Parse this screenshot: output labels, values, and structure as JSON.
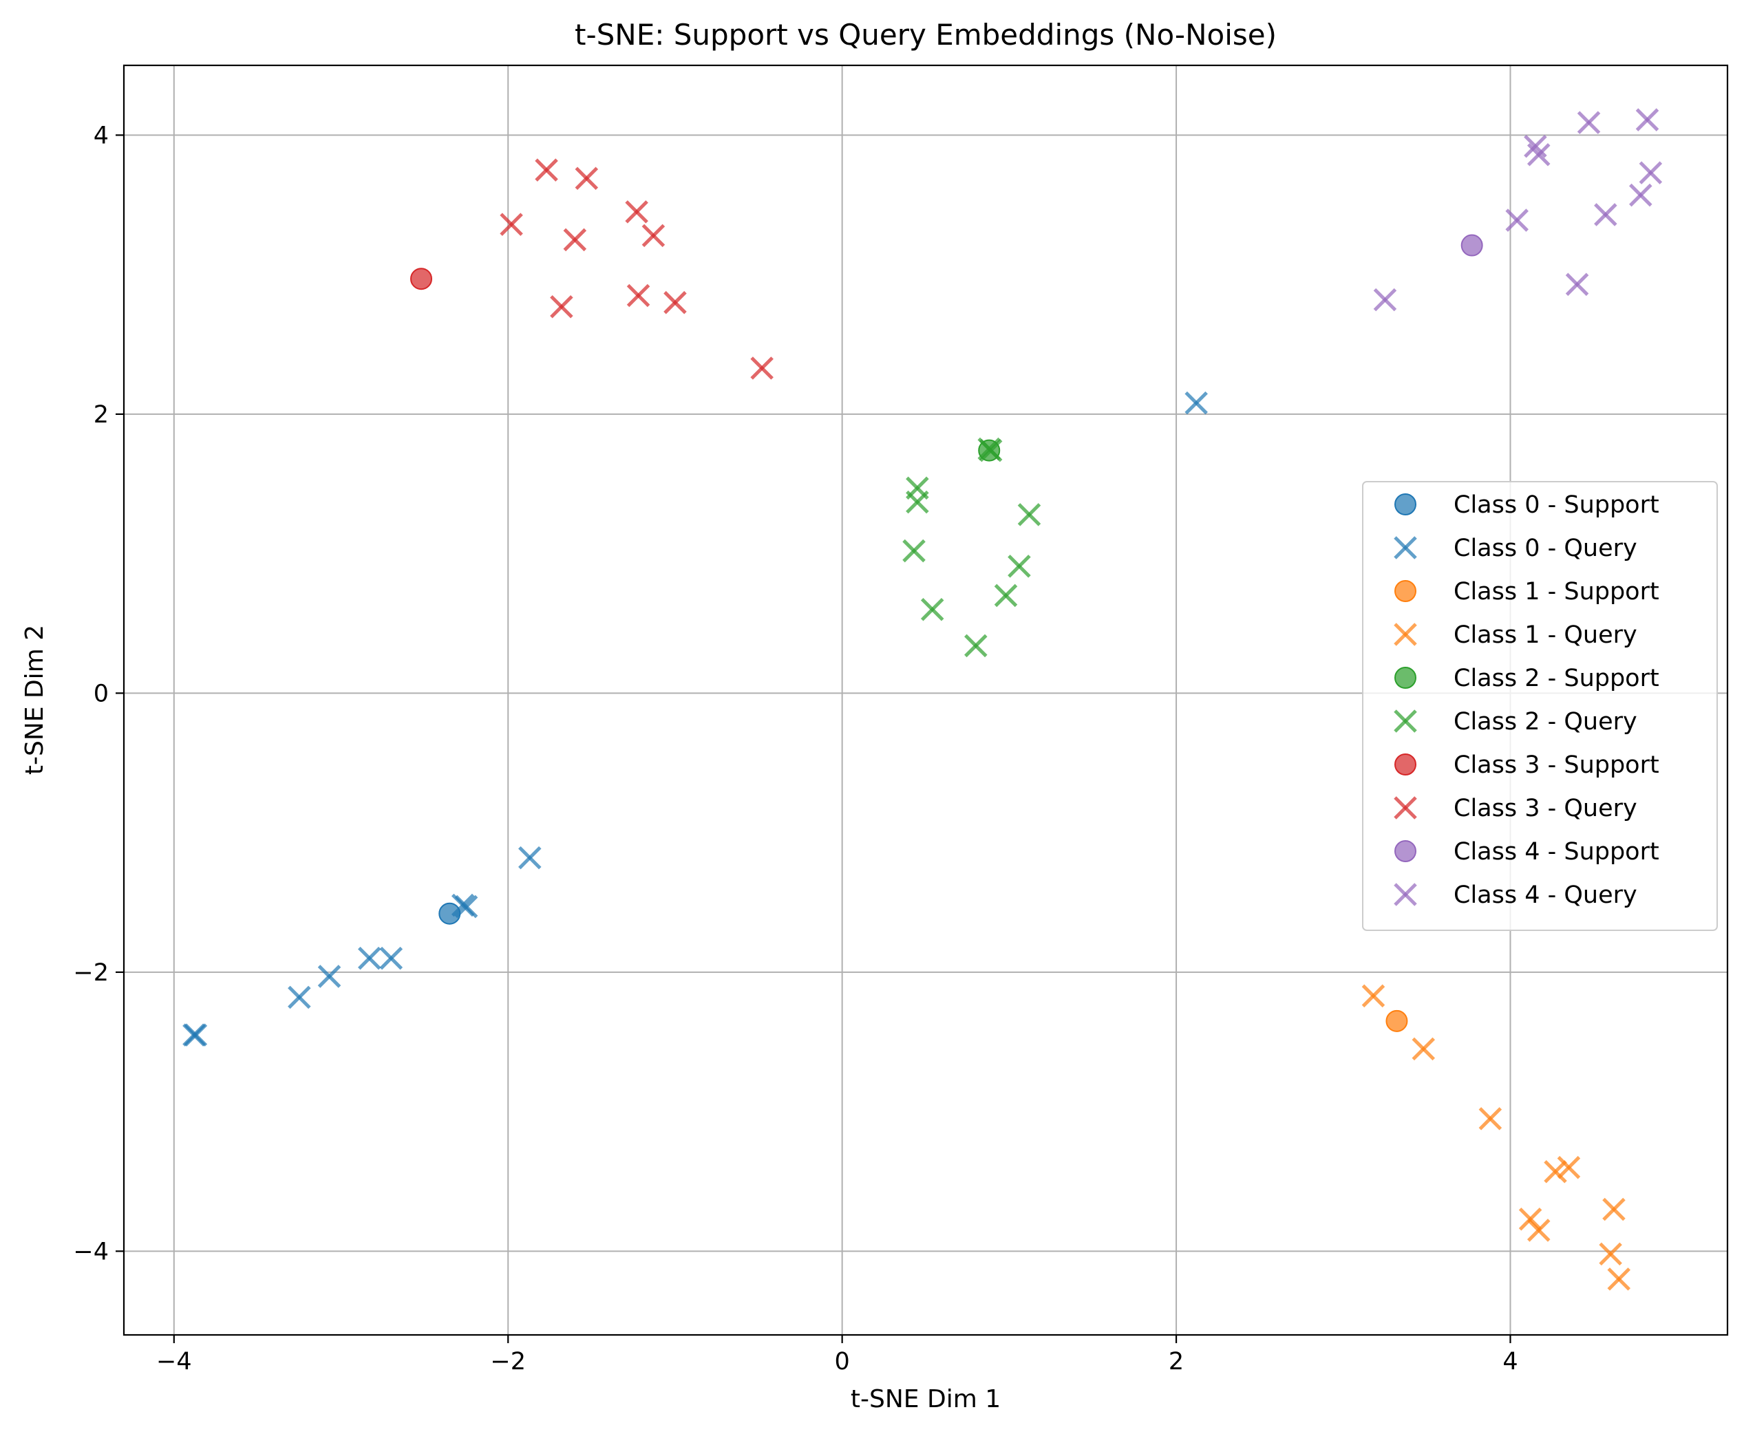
{
  "chart_data": {
    "type": "scatter",
    "title": "t-SNE: Support vs Query Embeddings (No-Noise)",
    "xlabel": "t-SNE Dim 1",
    "ylabel": "t-SNE Dim 2",
    "xlim": [
      -4.3,
      5.3
    ],
    "ylim": [
      -4.6,
      4.5
    ],
    "xticks": [
      -4,
      -2,
      0,
      2,
      4
    ],
    "yticks": [
      -4,
      -2,
      0,
      2,
      4
    ],
    "xtick_labels": [
      "−4",
      "−2",
      "0",
      "2",
      "4"
    ],
    "ytick_labels": [
      "−4",
      "−2",
      "0",
      "2",
      "4"
    ],
    "grid": true,
    "legend_position": "center-right",
    "series": [
      {
        "name": "Class 0 - Support",
        "marker": "circle",
        "color": "#1f77b4",
        "points": [
          [
            -2.35,
            -1.58
          ]
        ]
      },
      {
        "name": "Class 0 - Query",
        "marker": "x",
        "color": "#1f77b4",
        "points": [
          [
            -3.88,
            -2.45
          ],
          [
            -3.87,
            -2.45
          ],
          [
            -3.25,
            -2.18
          ],
          [
            -3.07,
            -2.03
          ],
          [
            -2.83,
            -1.9
          ],
          [
            -2.7,
            -1.9
          ],
          [
            -2.27,
            -1.52
          ],
          [
            -2.25,
            -1.53
          ],
          [
            -1.87,
            -1.18
          ],
          [
            2.12,
            2.08
          ]
        ]
      },
      {
        "name": "Class 1 - Support",
        "marker": "circle",
        "color": "#ff7f0e",
        "points": [
          [
            3.32,
            -2.35
          ]
        ]
      },
      {
        "name": "Class 1 - Query",
        "marker": "x",
        "color": "#ff7f0e",
        "points": [
          [
            3.18,
            -2.17
          ],
          [
            3.48,
            -2.55
          ],
          [
            3.88,
            -3.05
          ],
          [
            4.27,
            -3.43
          ],
          [
            4.35,
            -3.4
          ],
          [
            4.12,
            -3.77
          ],
          [
            4.17,
            -3.85
          ],
          [
            4.62,
            -3.7
          ],
          [
            4.6,
            -4.02
          ],
          [
            4.65,
            -4.2
          ]
        ]
      },
      {
        "name": "Class 2 - Support",
        "marker": "circle",
        "color": "#2ca02c",
        "points": [
          [
            0.88,
            1.74
          ]
        ]
      },
      {
        "name": "Class 2 - Query",
        "marker": "x",
        "color": "#2ca02c",
        "points": [
          [
            0.89,
            1.74
          ],
          [
            0.45,
            1.47
          ],
          [
            0.45,
            1.37
          ],
          [
            0.43,
            1.02
          ],
          [
            0.54,
            0.6
          ],
          [
            0.8,
            0.34
          ],
          [
            0.98,
            0.7
          ],
          [
            1.06,
            0.91
          ],
          [
            1.12,
            1.28
          ],
          [
            0.88,
            1.75
          ]
        ]
      },
      {
        "name": "Class 3 - Support",
        "marker": "circle",
        "color": "#d62728",
        "points": [
          [
            -2.52,
            2.97
          ]
        ]
      },
      {
        "name": "Class 3 - Query",
        "marker": "x",
        "color": "#d62728",
        "points": [
          [
            -1.77,
            3.75
          ],
          [
            -1.53,
            3.69
          ],
          [
            -1.23,
            3.45
          ],
          [
            -1.13,
            3.28
          ],
          [
            -1.98,
            3.36
          ],
          [
            -1.6,
            3.25
          ],
          [
            -1.68,
            2.77
          ],
          [
            -1.22,
            2.85
          ],
          [
            -1.0,
            2.8
          ],
          [
            -0.48,
            2.33
          ]
        ]
      },
      {
        "name": "Class 4 - Support",
        "marker": "circle",
        "color": "#9467bd",
        "points": [
          [
            3.77,
            3.21
          ]
        ]
      },
      {
        "name": "Class 4 - Query",
        "marker": "x",
        "color": "#9467bd",
        "points": [
          [
            4.15,
            3.92
          ],
          [
            4.17,
            3.86
          ],
          [
            4.47,
            4.09
          ],
          [
            4.82,
            4.11
          ],
          [
            4.84,
            3.73
          ],
          [
            4.78,
            3.57
          ],
          [
            4.57,
            3.43
          ],
          [
            4.04,
            3.39
          ],
          [
            4.4,
            2.93
          ],
          [
            3.25,
            2.82
          ]
        ]
      }
    ]
  }
}
